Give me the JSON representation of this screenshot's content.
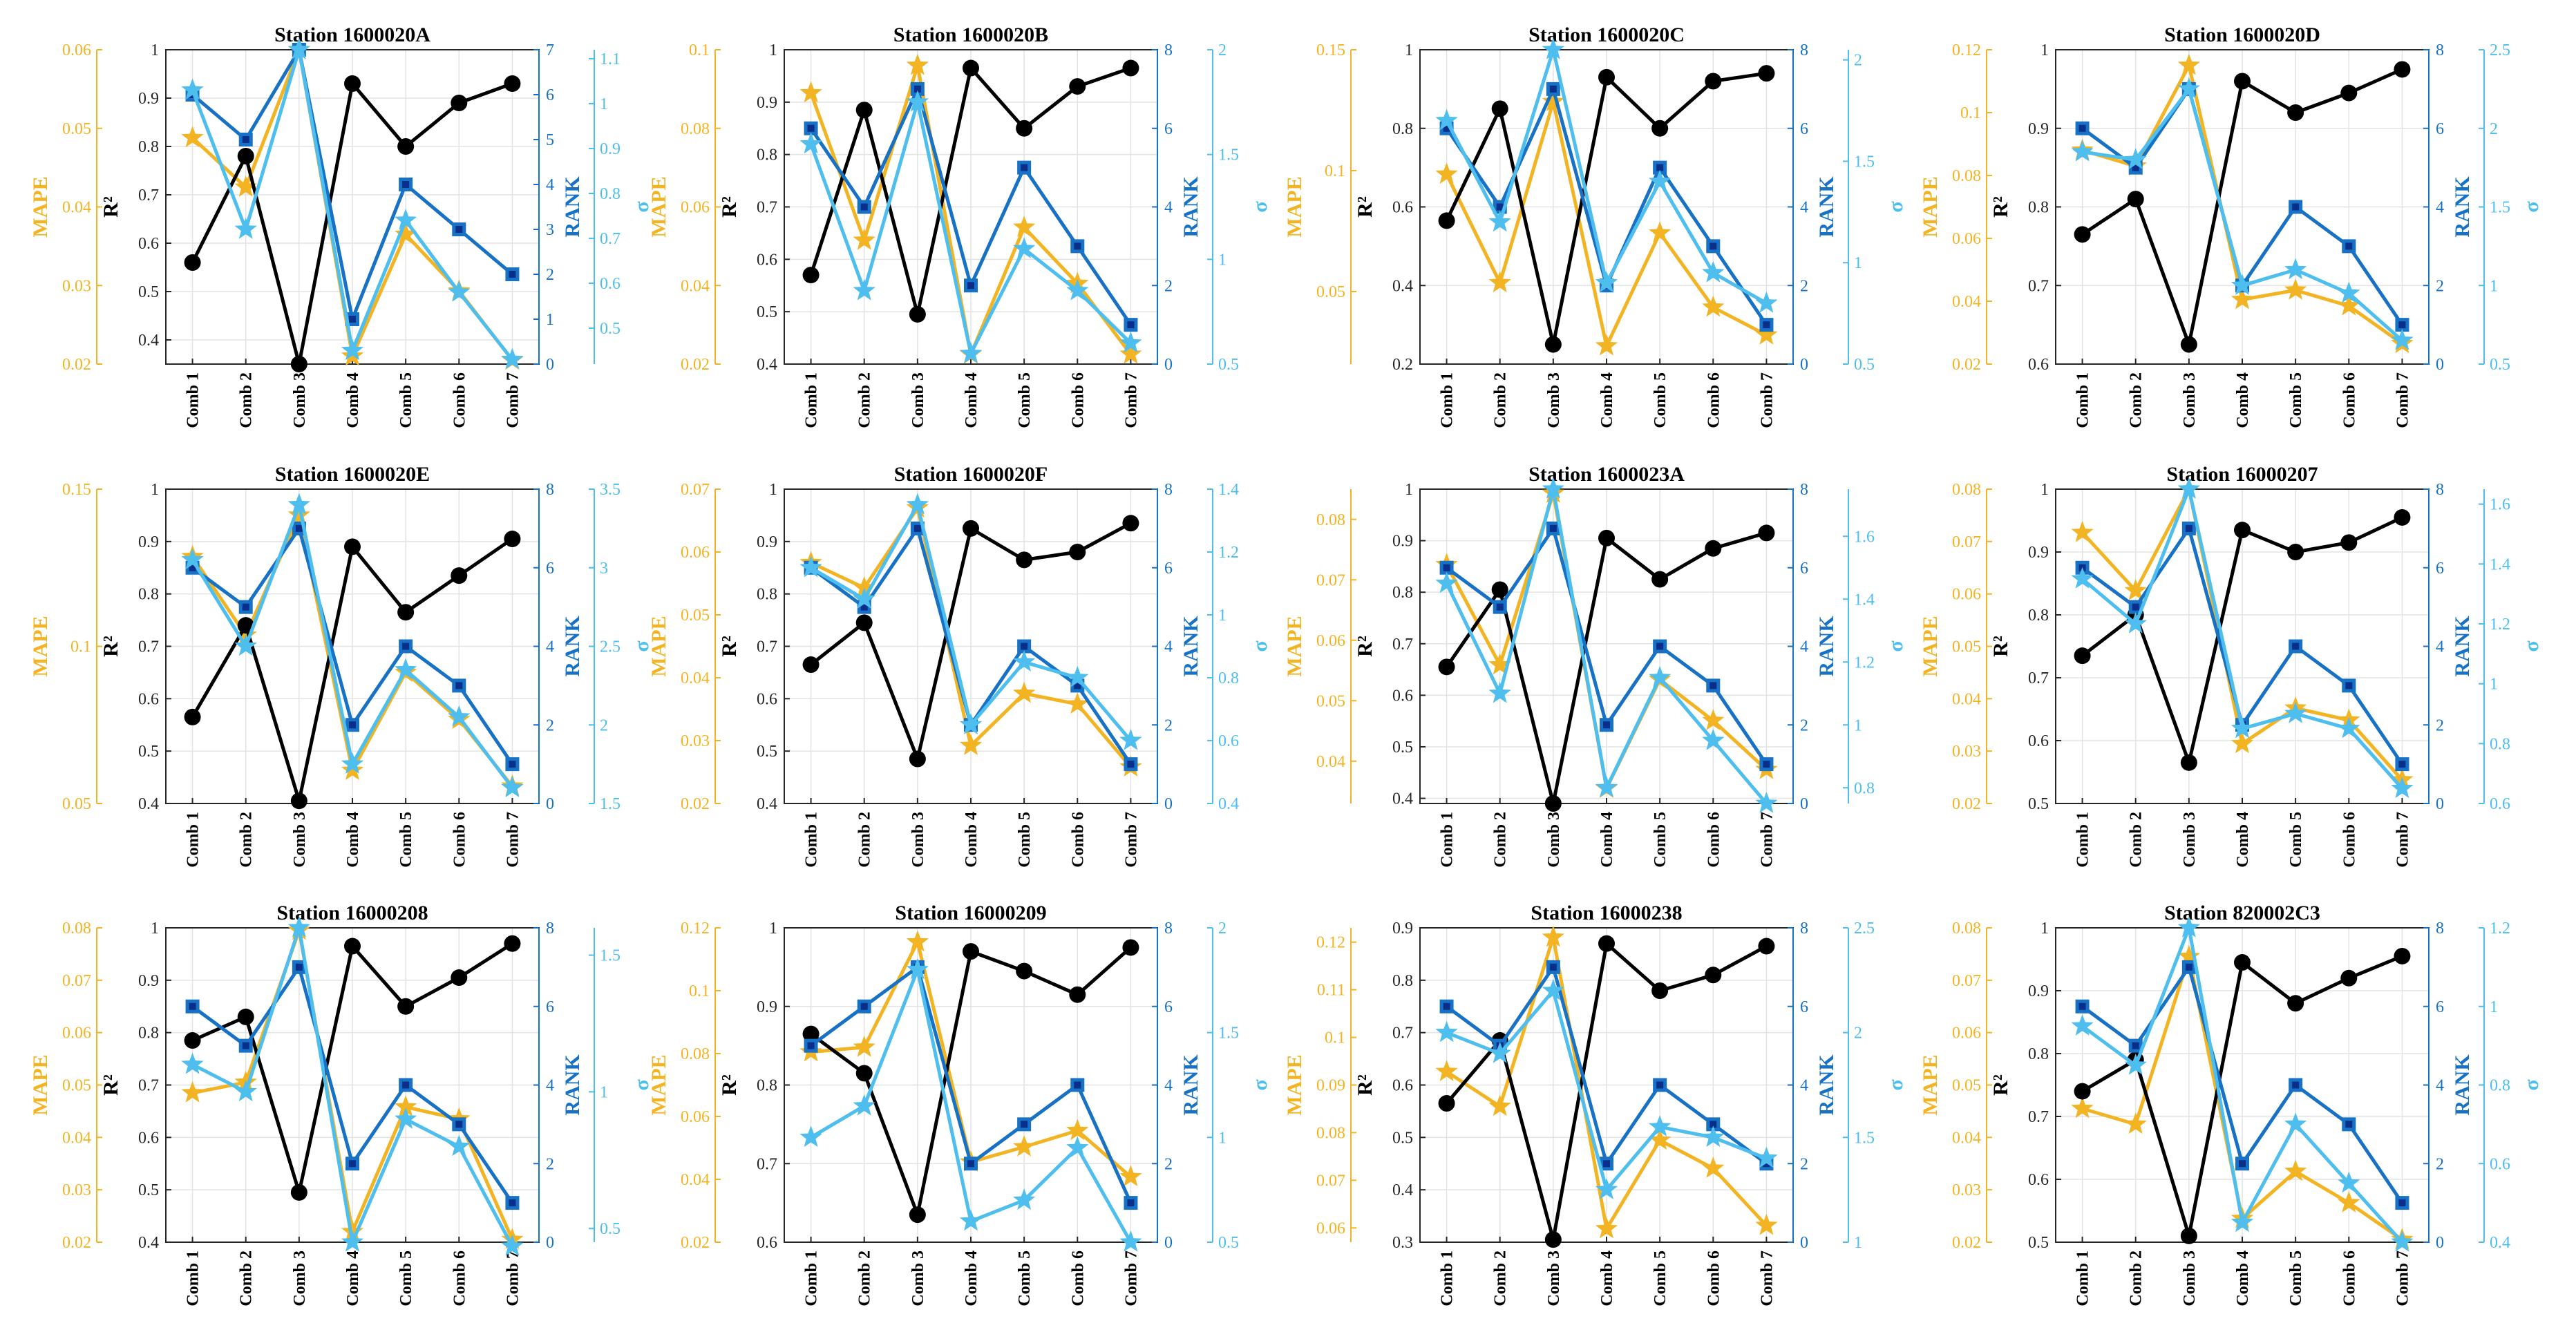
{
  "figure": {
    "colors": {
      "r2": "#000000",
      "mape": "#F2B422",
      "rank": "#1771C4",
      "sigma": "#4DBEEE"
    },
    "x_ticks": [
      "Comb 1",
      "Comb 2",
      "Comb 3",
      "Comb 4",
      "Comb 5",
      "Comb 6",
      "Comb 7"
    ],
    "labels": {
      "mape": "MAPE",
      "r2": "R²",
      "rank": "RANK",
      "sigma": "σ"
    }
  },
  "chart_data": [
    {
      "type": "line",
      "title": "Station 1600020A",
      "mape_range": [
        0.02,
        0.06
      ],
      "mape_ticks": [
        "0.02",
        "0.03",
        "0.04",
        "0.05",
        "0.06"
      ],
      "r2_range": [
        0.35,
        1.0
      ],
      "r2_ticks": [
        "0.4",
        "0.5",
        "0.6",
        "0.7",
        "0.8",
        "0.9",
        "1"
      ],
      "rank_range": [
        0,
        7
      ],
      "rank_ticks": [
        "0",
        "1",
        "2",
        "3",
        "4",
        "5",
        "6",
        "7"
      ],
      "sigma_range": [
        0.42,
        1.12
      ],
      "sigma_ticks": [
        "0.5",
        "0.6",
        "0.7",
        "0.8",
        "0.9",
        "1",
        "1.1"
      ],
      "series": {
        "r2": [
          0.56,
          0.78,
          0.35,
          0.93,
          0.8,
          0.89,
          0.93
        ],
        "mape": [
          0.0488,
          0.0425,
          0.06,
          0.021,
          0.0365,
          0.0293,
          0.0205
        ],
        "rank": [
          6,
          5,
          7,
          1,
          4,
          3,
          2
        ],
        "sigma": [
          1.03,
          0.72,
          1.12,
          0.45,
          0.74,
          0.58,
          0.43
        ]
      }
    },
    {
      "type": "line",
      "title": "Station 1600020B",
      "mape_range": [
        0.02,
        0.1
      ],
      "mape_ticks": [
        "0.02",
        "0.04",
        "0.06",
        "0.08",
        "0.1"
      ],
      "r2_range": [
        0.4,
        1.0
      ],
      "r2_ticks": [
        "0.4",
        "0.5",
        "0.6",
        "0.7",
        "0.8",
        "0.9",
        "1"
      ],
      "rank_range": [
        0,
        8
      ],
      "rank_ticks": [
        "0",
        "2",
        "4",
        "6",
        "8"
      ],
      "sigma_range": [
        0.5,
        2.0
      ],
      "sigma_ticks": [
        "0.5",
        "1",
        "1.5",
        "2"
      ],
      "series": {
        "r2": [
          0.57,
          0.885,
          0.495,
          0.965,
          0.85,
          0.93,
          0.965
        ],
        "mape": [
          0.089,
          0.0515,
          0.096,
          0.0225,
          0.0548,
          0.0405,
          0.0225
        ],
        "rank": [
          6,
          4,
          7,
          2,
          5,
          3,
          1
        ],
        "sigma": [
          1.55,
          0.85,
          1.75,
          0.55,
          1.05,
          0.85,
          0.6
        ]
      }
    },
    {
      "type": "line",
      "title": "Station 1600020C",
      "mape_range": [
        0.02,
        0.15
      ],
      "mape_ticks": [
        "0.05",
        "0.1",
        "0.15"
      ],
      "r2_range": [
        0.2,
        1.0
      ],
      "r2_ticks": [
        "0.2",
        "0.4",
        "0.6",
        "0.8",
        "1"
      ],
      "rank_range": [
        0,
        8
      ],
      "rank_ticks": [
        "0",
        "2",
        "4",
        "6",
        "8"
      ],
      "sigma_range": [
        0.5,
        2.05
      ],
      "sigma_ticks": [
        "0.5",
        "1",
        "1.5",
        "2"
      ],
      "series": {
        "r2": [
          0.565,
          0.85,
          0.25,
          0.93,
          0.8,
          0.92,
          0.94
        ],
        "mape": [
          0.0985,
          0.0536,
          0.1285,
          0.0275,
          0.0742,
          0.0435,
          0.032
        ],
        "rank": [
          6,
          4,
          7,
          2,
          5,
          3,
          1
        ],
        "sigma": [
          1.7,
          1.2,
          2.05,
          0.9,
          1.4,
          0.95,
          0.8
        ]
      }
    },
    {
      "type": "line",
      "title": "Station 1600020D",
      "mape_range": [
        0.02,
        0.12
      ],
      "mape_ticks": [
        "0.02",
        "0.04",
        "0.06",
        "0.08",
        "0.1",
        "0.12"
      ],
      "r2_range": [
        0.6,
        1.0
      ],
      "r2_ticks": [
        "0.6",
        "0.7",
        "0.8",
        "0.9",
        "1"
      ],
      "rank_range": [
        0,
        8
      ],
      "rank_ticks": [
        "0",
        "2",
        "4",
        "6",
        "8"
      ],
      "sigma_range": [
        0.5,
        2.5
      ],
      "sigma_ticks": [
        "0.5",
        "1",
        "1.5",
        "2",
        "2.5"
      ],
      "series": {
        "r2": [
          0.765,
          0.81,
          0.625,
          0.96,
          0.92,
          0.945,
          0.975
        ],
        "mape": [
          0.088,
          0.083,
          0.115,
          0.0405,
          0.0435,
          0.0385,
          0.0265
        ],
        "rank": [
          6,
          5,
          7,
          2,
          4,
          3,
          1
        ],
        "sigma": [
          1.85,
          1.8,
          2.25,
          1.0,
          1.1,
          0.95,
          0.65
        ]
      }
    },
    {
      "type": "line",
      "title": "Station 1600020E",
      "mape_range": [
        0.05,
        0.15
      ],
      "mape_ticks": [
        "0.05",
        "0.1",
        "0.15"
      ],
      "r2_range": [
        0.4,
        1.0
      ],
      "r2_ticks": [
        "0.4",
        "0.5",
        "0.6",
        "0.7",
        "0.8",
        "0.9",
        "1"
      ],
      "rank_range": [
        0,
        8
      ],
      "rank_ticks": [
        "0",
        "2",
        "4",
        "6",
        "8"
      ],
      "sigma_range": [
        1.5,
        3.5
      ],
      "sigma_ticks": [
        "1.5",
        "2",
        "2.5",
        "3",
        "3.5"
      ],
      "series": {
        "r2": [
          0.565,
          0.74,
          0.405,
          0.89,
          0.765,
          0.835,
          0.905
        ],
        "mape": [
          0.1285,
          0.1035,
          0.1417,
          0.0605,
          0.0917,
          0.0767,
          0.0555
        ],
        "rank": [
          6,
          5,
          7,
          2,
          4,
          3,
          1
        ],
        "sigma": [
          3.05,
          2.5,
          3.4,
          1.75,
          2.35,
          2.05,
          1.6
        ]
      }
    },
    {
      "type": "line",
      "title": "Station 1600020F",
      "mape_range": [
        0.02,
        0.07
      ],
      "mape_ticks": [
        "0.02",
        "0.03",
        "0.04",
        "0.05",
        "0.06",
        "0.07"
      ],
      "r2_range": [
        0.4,
        1.0
      ],
      "r2_ticks": [
        "0.4",
        "0.5",
        "0.6",
        "0.7",
        "0.8",
        "0.9",
        "1"
      ],
      "rank_range": [
        0,
        8
      ],
      "rank_ticks": [
        "0",
        "2",
        "4",
        "6",
        "8"
      ],
      "sigma_range": [
        0.4,
        1.4
      ],
      "sigma_ticks": [
        "0.4",
        "0.6",
        "0.8",
        "1",
        "1.2",
        "1.4"
      ],
      "series": {
        "r2": [
          0.665,
          0.745,
          0.485,
          0.925,
          0.865,
          0.88,
          0.935
        ],
        "mape": [
          0.0583,
          0.0543,
          0.067,
          0.0292,
          0.0375,
          0.0358,
          0.0258
        ],
        "rank": [
          6,
          5,
          7,
          2,
          4,
          3,
          1
        ],
        "sigma": [
          1.15,
          1.05,
          1.35,
          0.65,
          0.85,
          0.8,
          0.6
        ]
      }
    },
    {
      "type": "line",
      "title": "Station 1600023A",
      "mape_range": [
        0.033,
        0.085
      ],
      "mape_ticks": [
        "0.04",
        "0.05",
        "0.06",
        "0.07",
        "0.08"
      ],
      "r2_range": [
        0.39,
        1.0
      ],
      "r2_ticks": [
        "0.4",
        "0.5",
        "0.6",
        "0.7",
        "0.8",
        "0.9",
        "1"
      ],
      "rank_range": [
        0,
        8
      ],
      "rank_ticks": [
        "0",
        "2",
        "4",
        "6",
        "8"
      ],
      "sigma_range": [
        0.75,
        1.75
      ],
      "sigma_ticks": [
        "0.8",
        "1",
        "1.2",
        "1.4",
        "1.6"
      ],
      "series": {
        "r2": [
          0.655,
          0.805,
          0.39,
          0.905,
          0.825,
          0.885,
          0.915
        ],
        "mape": [
          0.0725,
          0.0559,
          0.0843,
          0.0355,
          0.0535,
          0.0467,
          0.0386
        ],
        "rank": [
          6,
          5,
          7,
          2,
          4,
          3,
          1
        ],
        "sigma": [
          1.45,
          1.1,
          1.75,
          0.8,
          1.15,
          0.95,
          0.75
        ]
      }
    },
    {
      "type": "line",
      "title": "Station 16000207",
      "mape_range": [
        0.02,
        0.08
      ],
      "mape_ticks": [
        "0.02",
        "0.03",
        "0.04",
        "0.05",
        "0.06",
        "0.07",
        "0.08"
      ],
      "r2_range": [
        0.5,
        1.0
      ],
      "r2_ticks": [
        "0.5",
        "0.6",
        "0.7",
        "0.8",
        "0.9",
        "1"
      ],
      "rank_range": [
        0,
        8
      ],
      "rank_ticks": [
        "0",
        "2",
        "4",
        "6",
        "8"
      ],
      "sigma_range": [
        0.6,
        1.65
      ],
      "sigma_ticks": [
        "0.6",
        "0.8",
        "1",
        "1.2",
        "1.4",
        "1.6"
      ],
      "series": {
        "r2": [
          0.735,
          0.8,
          0.565,
          0.935,
          0.9,
          0.915,
          0.955
        ],
        "mape": [
          0.0717,
          0.0606,
          0.08,
          0.0314,
          0.0382,
          0.0359,
          0.0245
        ],
        "rank": [
          6,
          5,
          7,
          2,
          4,
          3,
          1
        ],
        "sigma": [
          1.35,
          1.2,
          1.65,
          0.85,
          0.9,
          0.85,
          0.65
        ]
      }
    },
    {
      "type": "line",
      "title": "Station 16000208",
      "mape_range": [
        0.02,
        0.08
      ],
      "mape_ticks": [
        "0.02",
        "0.03",
        "0.04",
        "0.05",
        "0.06",
        "0.07",
        "0.08"
      ],
      "r2_range": [
        0.4,
        1.0
      ],
      "r2_ticks": [
        "0.4",
        "0.5",
        "0.6",
        "0.7",
        "0.8",
        "0.9",
        "1"
      ],
      "rank_range": [
        0,
        8
      ],
      "rank_ticks": [
        "0",
        "2",
        "4",
        "6",
        "8"
      ],
      "sigma_range": [
        0.45,
        1.6
      ],
      "sigma_ticks": [
        "0.5",
        "1",
        "1.5"
      ],
      "series": {
        "r2": [
          0.785,
          0.83,
          0.495,
          0.965,
          0.85,
          0.905,
          0.97
        ],
        "mape": [
          0.0485,
          0.0505,
          0.0795,
          0.022,
          0.0458,
          0.0435,
          0.0205
        ],
        "rank": [
          6,
          5,
          7,
          2,
          4,
          3,
          1
        ],
        "sigma": [
          1.1,
          1.0,
          1.6,
          0.45,
          0.9,
          0.8,
          0.4
        ]
      }
    },
    {
      "type": "line",
      "title": "Station 16000209",
      "mape_range": [
        0.02,
        0.12
      ],
      "mape_ticks": [
        "0.02",
        "0.04",
        "0.06",
        "0.08",
        "0.1",
        "0.12"
      ],
      "r2_range": [
        0.6,
        1.0
      ],
      "r2_ticks": [
        "0.6",
        "0.7",
        "0.8",
        "0.9",
        "1"
      ],
      "rank_range": [
        0,
        8
      ],
      "rank_ticks": [
        "0",
        "2",
        "4",
        "6",
        "8"
      ],
      "sigma_range": [
        0.5,
        2.0
      ],
      "sigma_ticks": [
        "0.5",
        "1",
        "1.5",
        "2"
      ],
      "series": {
        "r2": [
          0.865,
          0.815,
          0.635,
          0.97,
          0.945,
          0.915,
          0.975
        ],
        "mape": [
          0.0805,
          0.082,
          0.1155,
          0.0455,
          0.0503,
          0.0555,
          0.0408
        ],
        "rank": [
          5,
          6,
          7,
          2,
          3,
          4,
          1
        ],
        "sigma": [
          1.0,
          1.15,
          1.8,
          0.6,
          0.7,
          0.95,
          0.5
        ]
      }
    },
    {
      "type": "line",
      "title": "Station 16000238",
      "mape_range": [
        0.057,
        0.123
      ],
      "mape_ticks": [
        "0.06",
        "0.07",
        "0.08",
        "0.09",
        "0.1",
        "0.11",
        "0.12"
      ],
      "r2_range": [
        0.3,
        0.9
      ],
      "r2_ticks": [
        "0.3",
        "0.4",
        "0.5",
        "0.6",
        "0.7",
        "0.8",
        "0.9"
      ],
      "rank_range": [
        0,
        8
      ],
      "rank_ticks": [
        "0",
        "2",
        "4",
        "6",
        "8"
      ],
      "sigma_range": [
        1.0,
        2.5
      ],
      "sigma_ticks": [
        "1",
        "1.5",
        "2",
        "2.5"
      ],
      "series": {
        "r2": [
          0.565,
          0.685,
          0.305,
          0.87,
          0.78,
          0.81,
          0.865
        ],
        "mape": [
          0.0928,
          0.0855,
          0.121,
          0.0598,
          0.0784,
          0.0725,
          0.0605
        ],
        "rank": [
          6,
          5,
          7,
          2,
          4,
          3,
          2
        ],
        "sigma": [
          2.0,
          1.9,
          2.2,
          1.25,
          1.55,
          1.5,
          1.4
        ]
      }
    },
    {
      "type": "line",
      "title": "Station 820002C3",
      "mape_range": [
        0.02,
        0.08
      ],
      "mape_ticks": [
        "0.02",
        "0.03",
        "0.04",
        "0.05",
        "0.06",
        "0.07",
        "0.08"
      ],
      "r2_range": [
        0.5,
        1.0
      ],
      "r2_ticks": [
        "0.5",
        "0.6",
        "0.7",
        "0.8",
        "0.9",
        "1"
      ],
      "rank_range": [
        0,
        8
      ],
      "rank_ticks": [
        "0",
        "2",
        "4",
        "6",
        "8"
      ],
      "sigma_range": [
        0.4,
        1.2
      ],
      "sigma_ticks": [
        "0.4",
        "0.6",
        "0.8",
        "1",
        "1.2"
      ],
      "series": {
        "r2": [
          0.74,
          0.79,
          0.51,
          0.945,
          0.88,
          0.92,
          0.955
        ],
        "mape": [
          0.0455,
          0.0425,
          0.0745,
          0.0245,
          0.0335,
          0.0275,
          0.0205
        ],
        "rank": [
          6,
          5,
          7,
          2,
          4,
          3,
          1
        ],
        "sigma": [
          0.95,
          0.85,
          1.2,
          0.45,
          0.7,
          0.55,
          0.4
        ]
      }
    }
  ]
}
